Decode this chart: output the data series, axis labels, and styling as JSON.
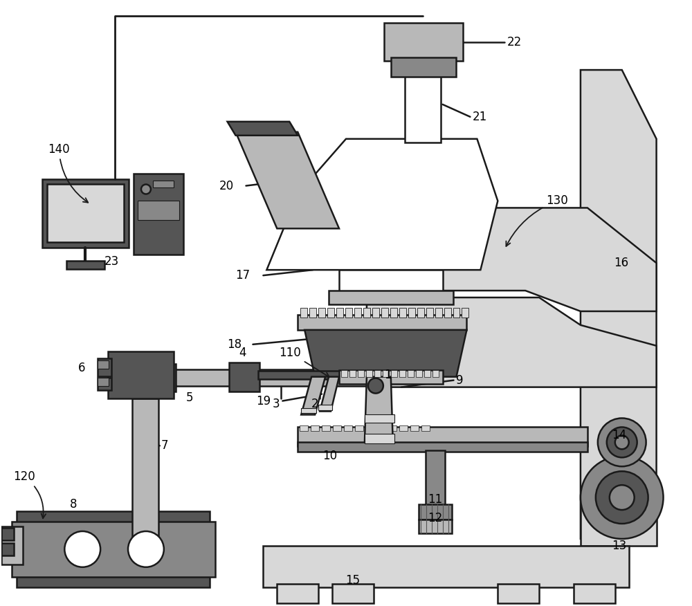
{
  "figsize": [
    10.0,
    8.76
  ],
  "dpi": 100,
  "lc": "#1a1a1a",
  "dg": "#555555",
  "mg": "#888888",
  "lg": "#b8b8b8",
  "vlg": "#d8d8d8",
  "white": "#ffffff"
}
